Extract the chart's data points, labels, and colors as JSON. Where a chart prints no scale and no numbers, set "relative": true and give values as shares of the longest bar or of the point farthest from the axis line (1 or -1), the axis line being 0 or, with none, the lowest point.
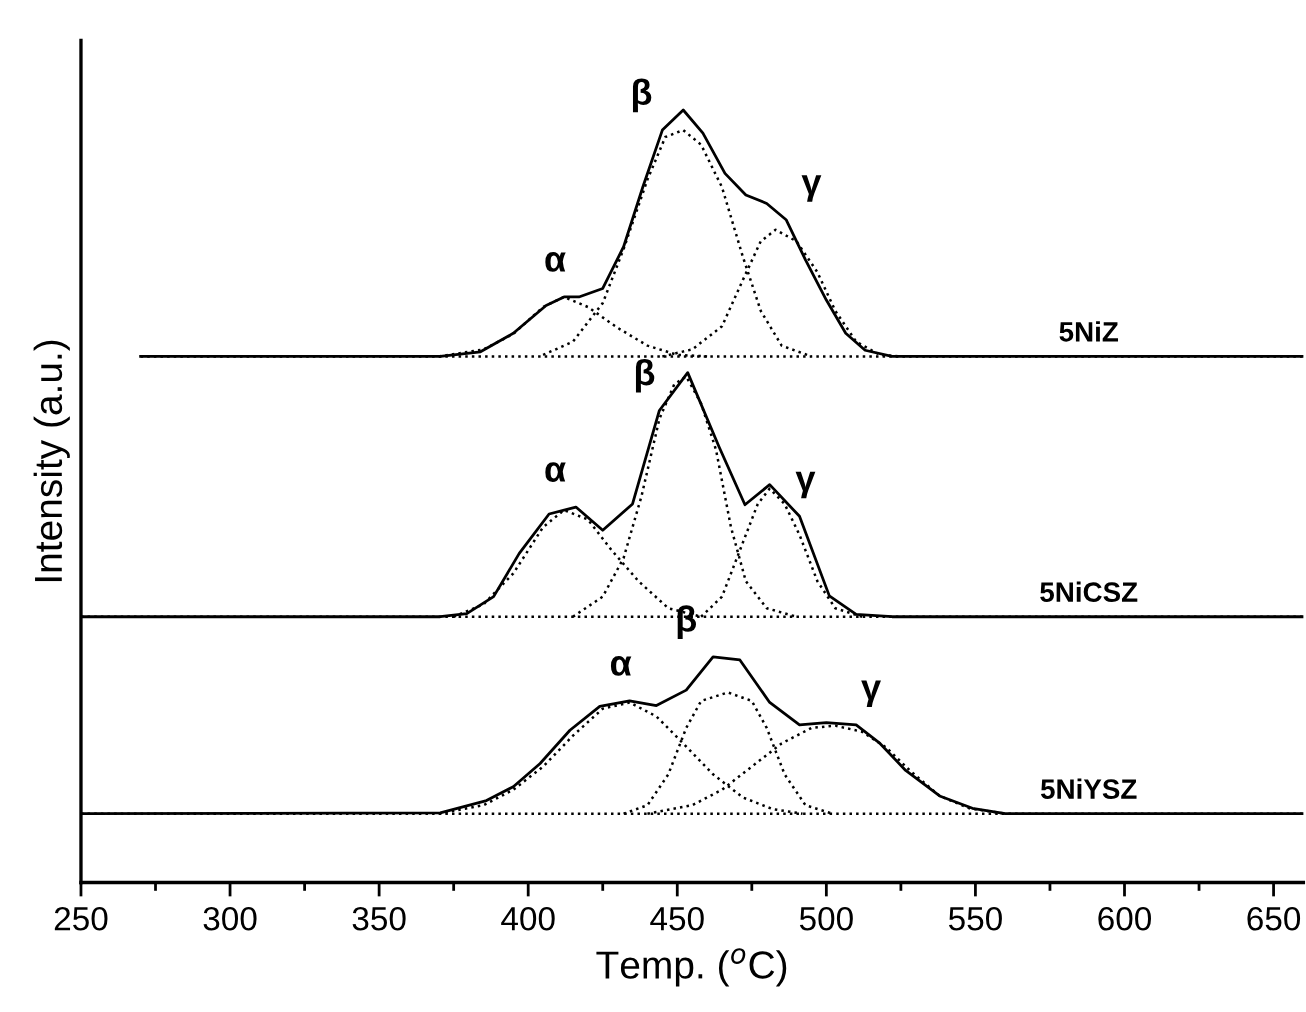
{
  "chart_data": {
    "type": "line",
    "relative": true,
    "xlabel": "Temp. ($^{o}$C)",
    "ylabel": "Intensity (a.u.)",
    "xlim": [
      250,
      660
    ],
    "xticks": [
      250,
      {
        "value": 275,
        "label": null
      },
      300,
      {
        "value": 325,
        "label": null
      },
      350,
      {
        "value": 375,
        "label": null
      },
      400,
      {
        "value": 425,
        "label": null
      },
      450,
      {
        "value": 475,
        "label": null
      },
      500,
      {
        "value": 525,
        "label": null
      },
      550,
      {
        "value": 575,
        "label": null
      },
      600,
      {
        "value": 625,
        "label": null
      },
      650
    ],
    "grid": false,
    "legend": false,
    "marker": "none",
    "series": [
      {
        "name": "5NiZ",
        "color": "#000000",
        "line_style": "solid",
        "x": [
          270,
          350,
          370.5,
          384,
          395,
          406,
          412,
          417,
          425,
          432,
          438.5,
          445,
          452,
          458.6,
          466,
          473,
          480,
          486.5,
          493,
          500,
          506.5,
          513,
          522,
          660
        ],
        "values": [
          0.681,
          0.681,
          0.681,
          0.687,
          0.711,
          0.747,
          0.758,
          0.758,
          0.769,
          0.823,
          0.901,
          0.974,
          1.0,
          0.97,
          0.918,
          0.89,
          0.879,
          0.858,
          0.806,
          0.754,
          0.711,
          0.689,
          0.681,
          0.681
        ]
      },
      {
        "color": "#000000",
        "line_style": "dotted",
        "x": [
          270,
          660
        ],
        "values": [
          0.681,
          0.681
        ]
      },
      {
        "color": "#000000",
        "line_style": "dotted",
        "x": [
          370,
          385,
          395,
          405,
          412,
          420,
          430,
          440,
          450,
          460
        ],
        "values": [
          0.681,
          0.69,
          0.71,
          0.745,
          0.758,
          0.745,
          0.718,
          0.695,
          0.683,
          0.681
        ]
      },
      {
        "color": "#000000",
        "line_style": "dotted",
        "x": [
          405,
          415,
          425,
          432,
          440,
          446,
          452,
          458,
          465,
          472,
          478,
          485,
          495
        ],
        "values": [
          0.683,
          0.7,
          0.75,
          0.82,
          0.91,
          0.965,
          0.974,
          0.955,
          0.9,
          0.81,
          0.74,
          0.695,
          0.681
        ]
      },
      {
        "color": "#000000",
        "line_style": "dotted",
        "x": [
          445,
          455,
          465,
          472,
          478,
          483,
          490,
          497,
          503,
          510,
          518,
          525
        ],
        "values": [
          0.681,
          0.69,
          0.72,
          0.78,
          0.83,
          0.845,
          0.83,
          0.79,
          0.74,
          0.7,
          0.683,
          0.681
        ]
      },
      {
        "name": "5NiCSZ",
        "color": "#000000",
        "line_style": "solid",
        "x": [
          250,
          370.5,
          379.4,
          388.4,
          397,
          407,
          416,
          425,
          435,
          444,
          453.5,
          464,
          472.7,
          481,
          491,
          501,
          510,
          522,
          660
        ],
        "values": [
          0.344,
          0.344,
          0.348,
          0.37,
          0.426,
          0.477,
          0.486,
          0.456,
          0.49,
          0.611,
          0.66,
          0.564,
          0.489,
          0.515,
          0.474,
          0.371,
          0.347,
          0.344,
          0.344
        ]
      },
      {
        "color": "#000000",
        "line_style": "dotted",
        "x": [
          250,
          660
        ],
        "values": [
          0.344,
          0.344
        ]
      },
      {
        "color": "#000000",
        "line_style": "dotted",
        "x": [
          375,
          385,
          395,
          405,
          412,
          420,
          428,
          437,
          447,
          458
        ],
        "values": [
          0.344,
          0.36,
          0.4,
          0.46,
          0.482,
          0.47,
          0.43,
          0.39,
          0.355,
          0.344
        ]
      },
      {
        "color": "#000000",
        "line_style": "dotted",
        "x": [
          415,
          425,
          432,
          438,
          444,
          449,
          453,
          458,
          463,
          468,
          473,
          480,
          490
        ],
        "values": [
          0.344,
          0.37,
          0.42,
          0.5,
          0.6,
          0.645,
          0.655,
          0.62,
          0.56,
          0.46,
          0.39,
          0.355,
          0.344
        ]
      },
      {
        "color": "#000000",
        "line_style": "dotted",
        "x": [
          458,
          465,
          472,
          477,
          481,
          486,
          491,
          497,
          503,
          512
        ],
        "values": [
          0.344,
          0.37,
          0.44,
          0.49,
          0.51,
          0.49,
          0.45,
          0.39,
          0.355,
          0.344
        ]
      },
      {
        "name": "5NiYSZ",
        "color": "#000000",
        "line_style": "solid",
        "x": [
          250,
          370.5,
          386,
          395,
          404,
          414,
          424,
          434,
          443,
          453,
          462,
          471,
          481,
          491,
          500,
          510,
          518,
          526.6,
          538,
          549,
          560,
          660
        ],
        "values": [
          0.089,
          0.09,
          0.106,
          0.124,
          0.154,
          0.197,
          0.228,
          0.235,
          0.229,
          0.249,
          0.292,
          0.288,
          0.233,
          0.204,
          0.207,
          0.204,
          0.18,
          0.145,
          0.112,
          0.096,
          0.089,
          0.089
        ]
      },
      {
        "color": "#000000",
        "line_style": "dotted",
        "x": [
          250,
          660
        ],
        "values": [
          0.089,
          0.089
        ]
      },
      {
        "color": "#000000",
        "line_style": "dotted",
        "x": [
          370,
          385,
          395,
          405,
          415,
          425,
          434,
          443,
          452,
          462,
          472,
          482,
          492
        ],
        "values": [
          0.089,
          0.1,
          0.12,
          0.15,
          0.19,
          0.225,
          0.233,
          0.215,
          0.18,
          0.14,
          0.11,
          0.095,
          0.089
        ]
      },
      {
        "color": "#000000",
        "line_style": "dotted",
        "x": [
          432,
          440,
          447,
          453,
          458,
          467,
          475,
          480,
          486,
          493,
          502
        ],
        "values": [
          0.089,
          0.1,
          0.14,
          0.2,
          0.235,
          0.246,
          0.235,
          0.2,
          0.14,
          0.1,
          0.089
        ]
      },
      {
        "color": "#000000",
        "line_style": "dotted",
        "x": [
          440,
          455,
          465,
          475,
          485,
          495,
          503,
          512,
          520,
          528,
          538,
          548,
          560
        ],
        "values": [
          0.089,
          0.1,
          0.12,
          0.15,
          0.18,
          0.2,
          0.203,
          0.195,
          0.175,
          0.145,
          0.112,
          0.096,
          0.089
        ]
      }
    ],
    "annotations": [
      "α",
      "β",
      "γ",
      "α",
      "β",
      "γ",
      "α",
      "β",
      "γ"
    ]
  }
}
